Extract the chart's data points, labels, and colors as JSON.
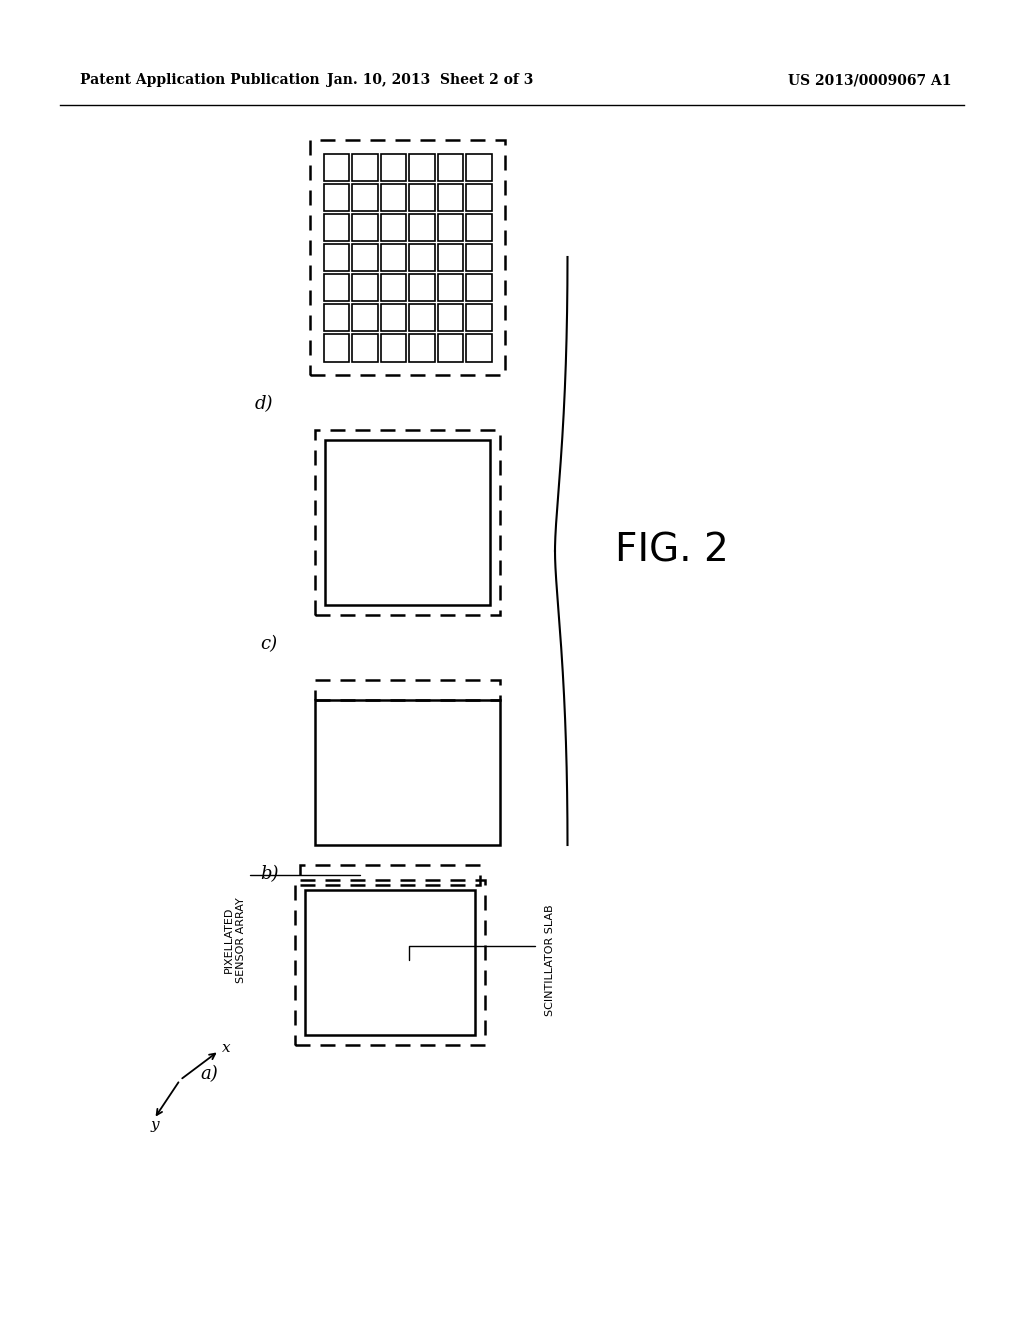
{
  "background_color": "#ffffff",
  "header_left": "Patent Application Publication",
  "header_center": "Jan. 10, 2013  Sheet 2 of 3",
  "header_right": "US 2013/0009067 A1",
  "fig_label": "FIG. 2",
  "label_pixellated": "PIXELLATED\nSENSOR ARRAY",
  "label_scintillator": "SCINTILLATOR SLAB",
  "panel_a_label": "a)",
  "panel_b_label": "b)",
  "panel_c_label": "c)",
  "panel_d_label": "d)",
  "grid_cols": 6,
  "grid_rows": 7,
  "line_color": "#000000",
  "text_color": "#000000"
}
